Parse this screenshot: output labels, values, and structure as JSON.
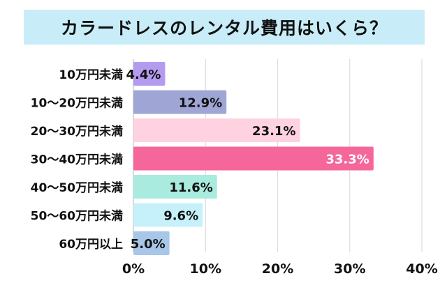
{
  "chart_data": {
    "type": "bar",
    "orientation": "horizontal",
    "title": "カラードレスのレンタル費用はいくら？",
    "categories": [
      "10万円未満",
      "10〜20万円未満",
      "20〜30万円未満",
      "30〜40万円未満",
      "40〜50万円未満",
      "50〜60万円未満",
      "60万円以上"
    ],
    "values": [
      4.4,
      12.9,
      23.1,
      33.3,
      11.6,
      9.6,
      5.0
    ],
    "data_labels": [
      "4.4%",
      "12.9%",
      "23.1%",
      "33.3%",
      "11.6%",
      "9.6%",
      "5.0%"
    ],
    "xlim": [
      0,
      40
    ],
    "x_ticks": [
      0,
      10,
      20,
      30,
      40
    ],
    "x_tick_labels": [
      "0%",
      "10%",
      "20%",
      "30%",
      "40%"
    ],
    "grid": "vertical",
    "legend": "none",
    "bar_colors": [
      "#b39cf0",
      "#9fa6d6",
      "#ffd2e2",
      "#f5679a",
      "#a9ecdf",
      "#c7f1fa",
      "#a7c6e8"
    ],
    "label_colors": [
      "#111111",
      "#111111",
      "#111111",
      "#ffffff",
      "#111111",
      "#111111",
      "#111111"
    ],
    "title_bg": "#c9edf8"
  }
}
